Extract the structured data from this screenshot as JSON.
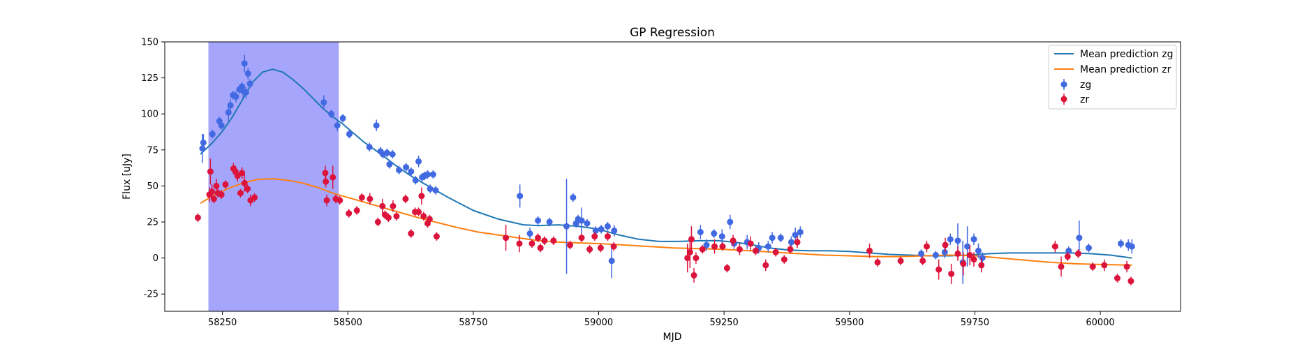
{
  "chart_data": {
    "type": "scatter",
    "title": "GP Regression",
    "xlabel": "MJD",
    "ylabel": "Flux [uJy]",
    "xlim": [
      58135,
      60160
    ],
    "ylim": [
      -37,
      150
    ],
    "xticks": [
      58250,
      58500,
      58750,
      59000,
      59250,
      59500,
      59750,
      60000
    ],
    "yticks": [
      -25,
      0,
      25,
      50,
      75,
      100,
      125,
      150
    ],
    "grid": false,
    "legend_position": "top-right",
    "shaded_region": {
      "x0": 58222,
      "x1": 58482,
      "color": "#a5a5fb"
    },
    "colors": {
      "zg_line": "#1f77b4",
      "zr_line": "#ff7f0e",
      "zg_points": "#4169e1",
      "zr_points": "#dc143c"
    },
    "lines": [
      {
        "name": "Mean prediction zg",
        "color": "#1f77b4",
        "x": [
          58206,
          58230,
          58250,
          58270,
          58290,
          58310,
          58330,
          58350,
          58370,
          58390,
          58410,
          58430,
          58450,
          58470,
          58490,
          58510,
          58530,
          58550,
          58570,
          58600,
          58630,
          58660,
          58700,
          58750,
          58800,
          58850,
          58880,
          58920,
          58960,
          59000,
          59040,
          59080,
          59120,
          59160,
          59200,
          59240,
          59270,
          59300,
          59340,
          59380,
          59420,
          59460,
          59500,
          59540,
          59580,
          59620,
          59660,
          59700,
          59740,
          59780,
          59820,
          59860,
          59900,
          59940,
          59980,
          60020,
          60063
        ],
        "y": [
          72,
          80,
          88,
          98,
          110,
          122,
          129,
          131,
          129,
          124,
          118,
          111,
          104,
          98,
          93,
          87,
          81,
          76,
          71,
          63,
          56,
          50,
          42,
          33,
          27,
          23,
          22.5,
          23,
          22,
          20,
          16,
          13,
          11.5,
          11.5,
          12,
          12,
          11,
          9.5,
          7,
          5.5,
          5,
          5,
          4.5,
          3.5,
          2.5,
          2,
          1.5,
          1.5,
          2,
          3,
          3.5,
          3.5,
          3.5,
          3.5,
          3,
          2,
          0
        ]
      },
      {
        "name": "Mean prediction zr",
        "color": "#ff7f0e",
        "x": [
          58206,
          58230,
          58260,
          58290,
          58320,
          58350,
          58380,
          58410,
          58440,
          58470,
          58500,
          58530,
          58560,
          58600,
          58640,
          58680,
          58720,
          58760,
          58800,
          58840,
          58880,
          58920,
          58960,
          59000,
          59050,
          59100,
          59150,
          59200,
          59250,
          59300,
          59350,
          59400,
          59450,
          59500,
          59550,
          59600,
          59650,
          59700,
          59750,
          59800,
          59850,
          59900,
          59950,
          60000,
          60063
        ],
        "y": [
          38,
          43,
          48,
          52,
          54.5,
          55,
          54,
          52,
          49,
          45,
          42,
          39,
          36,
          32,
          28,
          24.5,
          21,
          18,
          16,
          14,
          12,
          11,
          10.5,
          10,
          9,
          8,
          7,
          6.5,
          6,
          5,
          4,
          3,
          2,
          1.5,
          1,
          1,
          1.5,
          2,
          1.5,
          0,
          -1.5,
          -3,
          -4,
          -4.5,
          -5
        ]
      }
    ],
    "series": [
      {
        "name": "zg",
        "color": "#4169e1",
        "x": [
          58210,
          58212,
          58230,
          58244,
          58248,
          58262,
          58266,
          58271,
          58277,
          58284,
          58289,
          58291,
          58294,
          58297,
          58301,
          58305,
          58452,
          58467,
          58479,
          58490,
          58503,
          58543,
          58557,
          58565,
          58570,
          58578,
          58583,
          58589,
          58602,
          58616,
          58626,
          58635,
          58641,
          58648,
          58653,
          58659,
          58664,
          58670,
          58675,
          58843,
          58863,
          58879,
          58902,
          58936,
          58949,
          58955,
          58959,
          58966,
          58977,
          58994,
          59005,
          59018,
          59026,
          59031,
          59203,
          59215,
          59230,
          59246,
          59262,
          59270,
          59296,
          59319,
          59338,
          59346,
          59363,
          59384,
          59392,
          59402,
          59643,
          59672,
          59690,
          59701,
          59716,
          59726,
          59735,
          59748,
          59757,
          59765,
          59937,
          59958,
          59977,
          60041,
          60056,
          60063
        ],
        "y": [
          76,
          80,
          86,
          95,
          92,
          101,
          106,
          113,
          112,
          117,
          119,
          116,
          135,
          115,
          128,
          121,
          108,
          100,
          92,
          97,
          86,
          77,
          92,
          74,
          72,
          73,
          65,
          72,
          61,
          63,
          60,
          54,
          67,
          56,
          57,
          58,
          48,
          58,
          47,
          43,
          17,
          26,
          25,
          22,
          42,
          24,
          27,
          26,
          24,
          19,
          20,
          22,
          -2,
          19,
          18,
          9,
          17,
          15,
          25,
          10,
          11,
          7,
          8,
          14,
          14,
          11,
          16,
          18,
          3,
          2,
          4,
          13,
          12,
          -3,
          8,
          13,
          5,
          0,
          5,
          14,
          7,
          10,
          9,
          8
        ],
        "yerr": [
          10,
          6,
          3,
          3,
          3,
          6,
          4,
          3,
          4,
          3,
          3,
          5,
          6,
          4,
          4,
          3,
          5,
          3,
          4,
          3,
          3,
          3,
          4,
          3,
          3,
          3,
          3,
          3,
          3,
          3,
          3,
          3,
          4,
          3,
          3,
          3,
          3,
          3,
          3,
          8,
          4,
          3,
          3,
          33,
          3,
          3,
          3,
          9,
          3,
          3,
          3,
          3,
          12,
          4,
          5,
          4,
          3,
          5,
          5,
          4,
          5,
          4,
          4,
          4,
          3,
          4,
          5,
          4,
          3,
          3,
          4,
          4,
          12,
          15,
          14,
          4,
          5,
          4,
          3,
          12,
          3,
          3,
          4,
          5
        ]
      },
      {
        "name": "zr",
        "color": "#dc143c",
        "x": [
          58201,
          58224,
          58226,
          58229,
          58233,
          58238,
          58241,
          58248,
          58256,
          58272,
          58276,
          58280,
          58286,
          58289,
          58294,
          58300,
          58306,
          58314,
          58455,
          58456,
          58458,
          58470,
          58476,
          58484,
          58502,
          58518,
          58528,
          58544,
          58560,
          58569,
          58574,
          58581,
          58590,
          58597,
          58615,
          58626,
          58634,
          58641,
          58647,
          58651,
          58659,
          58663,
          58677,
          58815,
          58842,
          58867,
          58879,
          58884,
          58892,
          58910,
          58943,
          58966,
          58982,
          58992,
          59004,
          59018,
          59030,
          59177,
          59182,
          59185,
          59190,
          59194,
          59207,
          59231,
          59247,
          59256,
          59268,
          59281,
          59303,
          59313,
          59333,
          59353,
          59370,
          59382,
          59396,
          59540,
          59556,
          59602,
          59646,
          59654,
          59678,
          59691,
          59703,
          59716,
          59727,
          59740,
          59748,
          59763,
          59910,
          59922,
          59935,
          59956,
          59985,
          60008,
          60034,
          60053,
          60061
        ],
        "y": [
          28,
          44,
          60,
          46,
          41,
          50,
          45,
          44,
          51,
          62,
          60,
          57,
          45,
          59,
          52,
          48,
          40,
          42,
          59,
          53,
          40,
          56,
          41,
          40,
          31,
          33,
          42,
          41,
          25,
          36,
          30,
          28,
          36,
          29,
          41,
          17,
          32,
          32,
          43,
          29,
          24,
          27,
          15,
          14,
          10,
          10,
          14,
          7,
          12,
          12,
          9,
          14,
          6,
          15,
          7,
          15,
          8,
          0,
          4,
          13,
          -12,
          0,
          6,
          8,
          8,
          -7,
          12,
          6,
          10,
          5,
          -5,
          4,
          -1,
          6,
          11,
          5,
          -3,
          -2,
          -2,
          8,
          -8,
          9,
          -11,
          3,
          -4,
          2,
          -1,
          -5,
          8,
          -6,
          1,
          3,
          -6,
          -5,
          -14,
          -6,
          -16
        ],
        "yerr": [
          3,
          5,
          9,
          5,
          3,
          5,
          3,
          3,
          3,
          4,
          4,
          4,
          3,
          4,
          6,
          3,
          4,
          3,
          5,
          4,
          4,
          8,
          3,
          3,
          3,
          3,
          3,
          4,
          3,
          5,
          3,
          3,
          4,
          3,
          3,
          3,
          3,
          3,
          6,
          3,
          3,
          3,
          3,
          9,
          6,
          3,
          3,
          3,
          3,
          3,
          3,
          3,
          3,
          3,
          3,
          3,
          3,
          10,
          11,
          9,
          5,
          4,
          3,
          5,
          3,
          3,
          4,
          4,
          5,
          3,
          4,
          3,
          3,
          3,
          4,
          5,
          3,
          3,
          3,
          4,
          7,
          5,
          7,
          5,
          8,
          7,
          5,
          5,
          4,
          7,
          3,
          3,
          3,
          4,
          3,
          4,
          3
        ]
      }
    ]
  }
}
